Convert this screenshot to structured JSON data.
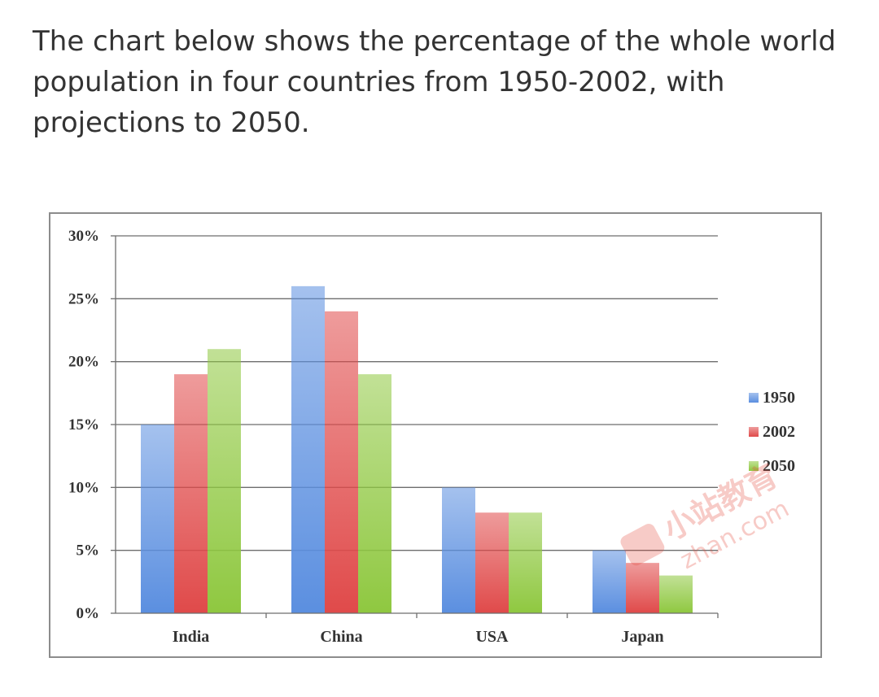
{
  "prompt": {
    "text": "The chart below shows the percentage of the whole world population in four countries from 1950-2002, with projections to 2050."
  },
  "chart_data": {
    "type": "bar",
    "categories": [
      "India",
      "China",
      "USA",
      "Japan"
    ],
    "series": [
      {
        "name": "1950",
        "values": [
          15,
          26,
          10,
          5
        ],
        "color": "#5b8fe0"
      },
      {
        "name": "2002",
        "values": [
          19,
          24,
          8,
          4
        ],
        "color": "#e04a4a"
      },
      {
        "name": "2050",
        "values": [
          21,
          19,
          8,
          3
        ],
        "color": "#8fc840"
      }
    ],
    "y_ticks": [
      "0%",
      "5%",
      "10%",
      "15%",
      "20%",
      "25%",
      "30%"
    ],
    "ylim": [
      0,
      30
    ],
    "unit": "%",
    "grid": true,
    "legend_position": "right"
  },
  "watermark": {
    "text1": "小站教育",
    "text2": "zhan.com"
  }
}
